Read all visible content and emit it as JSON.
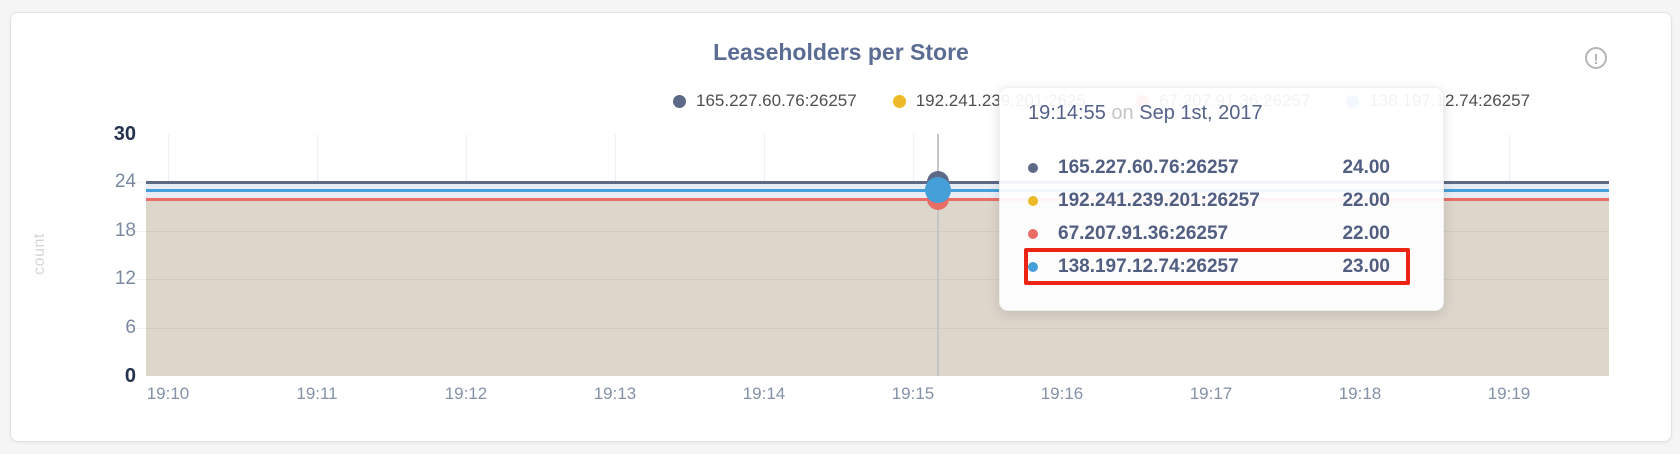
{
  "header": {
    "title": "Leaseholders per Store",
    "info_icon_glyph": "!"
  },
  "legend": {
    "items": [
      {
        "label": "165.227.60.76:26257",
        "color": "#5c6a87"
      },
      {
        "label": "192.241.239.201:2625...",
        "color": "#ecb927"
      },
      {
        "label": "67.207.91.36:26257",
        "color": "#e96f66"
      },
      {
        "label": "138.197.12.74:26257",
        "color": "#459fd9"
      }
    ]
  },
  "chart_data": {
    "type": "area",
    "title": "Leaseholders per Store",
    "ylabel": "count",
    "ylim": [
      0,
      30
    ],
    "yticks": [
      0,
      6,
      12,
      18,
      24,
      30
    ],
    "x_ticks": [
      "19:10",
      "19:11",
      "19:12",
      "19:13",
      "19:14",
      "19:15",
      "19:16",
      "19:17",
      "19:18",
      "19:19"
    ],
    "grid": true,
    "legend_position": "top",
    "series": [
      {
        "name": "165.227.60.76:26257",
        "color": "#5c6a87",
        "value": 24
      },
      {
        "name": "192.241.239.201:26257",
        "color": "#ecb927",
        "value": 22
      },
      {
        "name": "67.207.91.36:26257",
        "color": "#e96f66",
        "value": 22
      },
      {
        "name": "138.197.12.74:26257",
        "color": "#459fd9",
        "value": 23
      }
    ],
    "fill_colors": {
      "base": "#ddd6cb",
      "between": "#e9eef6"
    }
  },
  "tooltip": {
    "time": "19:14:55",
    "conjunction": "on",
    "date": "Sep 1st, 2017",
    "highlight_color": "#eb2413",
    "rows": [
      {
        "name": "165.227.60.76:26257",
        "value": "24.00",
        "color": "#5c6a87",
        "highlighted": false
      },
      {
        "name": "192.241.239.201:26257",
        "value": "22.00",
        "color": "#ecb927",
        "highlighted": false
      },
      {
        "name": "67.207.91.36:26257",
        "value": "22.00",
        "color": "#e96f66",
        "highlighted": false
      },
      {
        "name": "138.197.12.74:26257",
        "value": "23.00",
        "color": "#459fd9",
        "highlighted": true
      }
    ]
  }
}
